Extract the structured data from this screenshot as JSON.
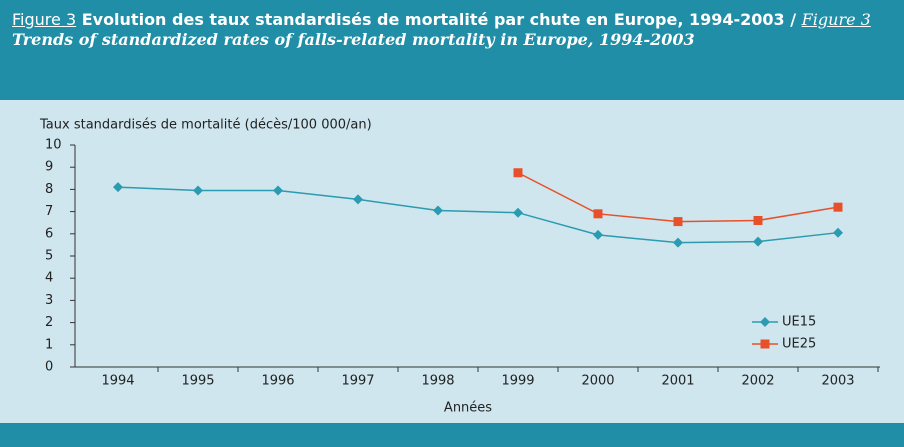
{
  "header": {
    "fig_label_fr": "Figure 3",
    "title_fr": "Evolution des taux standardisés de mortalité par chute en Europe, 1994-2003 /",
    "fig_label_en": "Figure 3",
    "title_en": "Trends of standardized rates of falls-related mortality in Europe, 1994-2003"
  },
  "chart_data": {
    "type": "line",
    "y_label": "Taux standardisés de mortalité (décès/100 000/an)",
    "x_label": "Années",
    "categories": [
      "1994",
      "1995",
      "1996",
      "1997",
      "1998",
      "1999",
      "2000",
      "2001",
      "2002",
      "2003"
    ],
    "series": [
      {
        "name": "UE15",
        "color": "#2a9bb0",
        "marker": "diamond",
        "values": [
          8.1,
          7.95,
          7.95,
          7.55,
          7.05,
          6.95,
          5.95,
          5.6,
          5.65,
          6.05
        ]
      },
      {
        "name": "UE25",
        "color": "#e8502a",
        "marker": "square",
        "values": [
          null,
          null,
          null,
          null,
          null,
          8.75,
          6.9,
          6.55,
          6.6,
          7.2
        ]
      }
    ],
    "ylim": [
      0,
      10
    ],
    "yticks": [
      0,
      1,
      2,
      3,
      4,
      5,
      6,
      7,
      8,
      9,
      10
    ],
    "grid": false,
    "legend": "lower right"
  }
}
